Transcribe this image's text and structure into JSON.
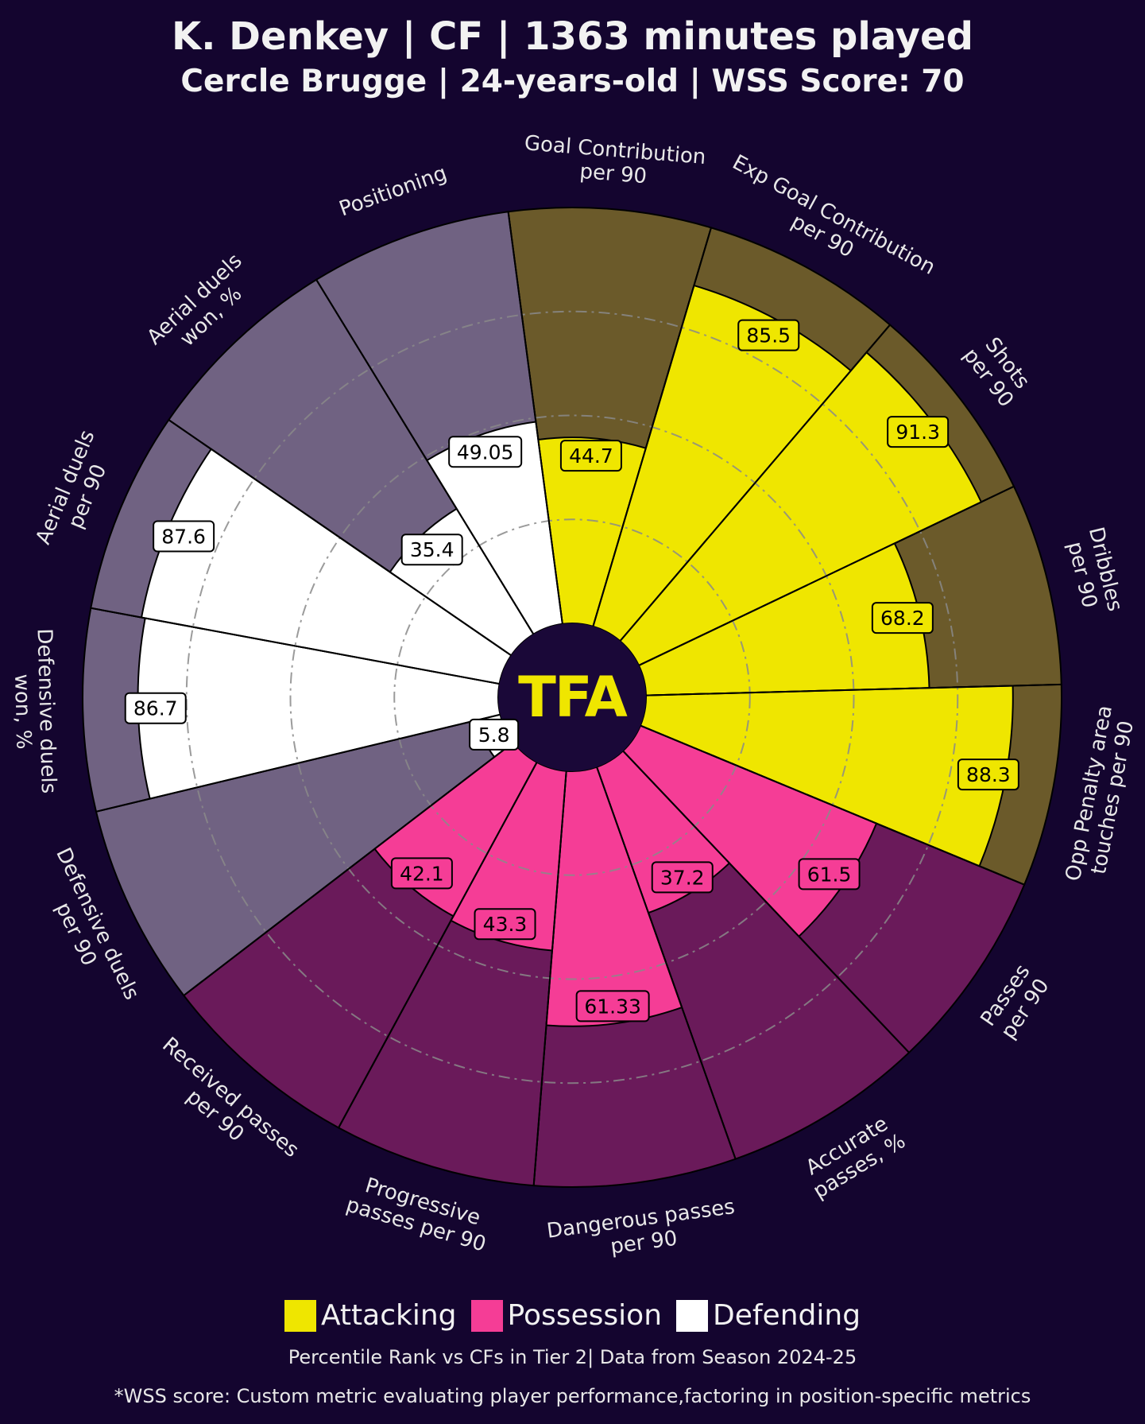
{
  "header": {
    "title": "K. Denkey | CF | 1363 minutes played",
    "subtitle": "Cercle Brugge | 24-years-old | WSS Score: 70"
  },
  "logo": {
    "text": "TFA",
    "color": "#efe600",
    "background": "#1a0838"
  },
  "legend": [
    {
      "label": "Attacking",
      "color": "#efe600"
    },
    {
      "label": "Possession",
      "color": "#f53d96"
    },
    {
      "label": "Defending",
      "color": "#ffffff"
    }
  ],
  "footer": {
    "note": "Percentile Rank vs CFs in Tier 2| Data from Season 2024-25",
    "disclaimer": "*WSS score: Custom metric evaluating player performance,factoring in position-specific metrics"
  },
  "chart_data": {
    "type": "pie",
    "subtype": "pizza / radial percentile chart",
    "scale": [
      0,
      100
    ],
    "gridlines": [
      25,
      50,
      75
    ],
    "colors": {
      "attacking_fill": "#efe600",
      "attacking_bg": "#6b5a2a",
      "possession_fill": "#f53d96",
      "possession_bg": "#6a1a5a",
      "defending_fill": "#ffffff",
      "defending_bg": "#706282",
      "label_bg_possession": "#f53d96",
      "text": "#e8e8e8"
    },
    "metrics": [
      {
        "label": [
          "Goal Contribution",
          "per 90"
        ],
        "value": 44.7,
        "display": "44.7",
        "group": "attacking"
      },
      {
        "label": [
          "Exp Goal Contribution",
          "per 90"
        ],
        "value": 85.5,
        "display": "85.5",
        "group": "attacking"
      },
      {
        "label": [
          "Shots",
          "per 90"
        ],
        "value": 91.3,
        "display": "91.3",
        "group": "attacking"
      },
      {
        "label": [
          "Dribbles",
          "per 90"
        ],
        "value": 68.2,
        "display": "68.2",
        "group": "attacking"
      },
      {
        "label": [
          "Opp Penalty area",
          "touches per 90"
        ],
        "value": 88.3,
        "display": "88.3",
        "group": "attacking"
      },
      {
        "label": [
          "Passes",
          "per 90"
        ],
        "value": 61.5,
        "display": "61.5",
        "group": "possession"
      },
      {
        "label": [
          "Accurate",
          "passes, %"
        ],
        "value": 37.2,
        "display": "37.2",
        "group": "possession"
      },
      {
        "label": [
          "Dangerous passes",
          "per 90"
        ],
        "value": 61.33,
        "display": "61.33",
        "group": "possession"
      },
      {
        "label": [
          "Progressive",
          "passes per 90"
        ],
        "value": 43.3,
        "display": "43.3",
        "group": "possession"
      },
      {
        "label": [
          "Received passes",
          "per 90"
        ],
        "value": 42.1,
        "display": "42.1",
        "group": "possession"
      },
      {
        "label": [
          "Defensive duels",
          "per 90"
        ],
        "value": 5.8,
        "display": "5.8",
        "group": "defending"
      },
      {
        "label": [
          "Defensive duels",
          "won, %"
        ],
        "value": 86.7,
        "display": "86.7",
        "group": "defending"
      },
      {
        "label": [
          "Aerial duels",
          "per 90"
        ],
        "value": 87.6,
        "display": "87.6",
        "group": "defending"
      },
      {
        "label": [
          "Aerial duels",
          "won, %"
        ],
        "value": 35.4,
        "display": "35.4",
        "group": "defending"
      },
      {
        "label": [
          "Positioning"
        ],
        "value": 49.05,
        "display": "49.05",
        "group": "defending"
      }
    ]
  }
}
